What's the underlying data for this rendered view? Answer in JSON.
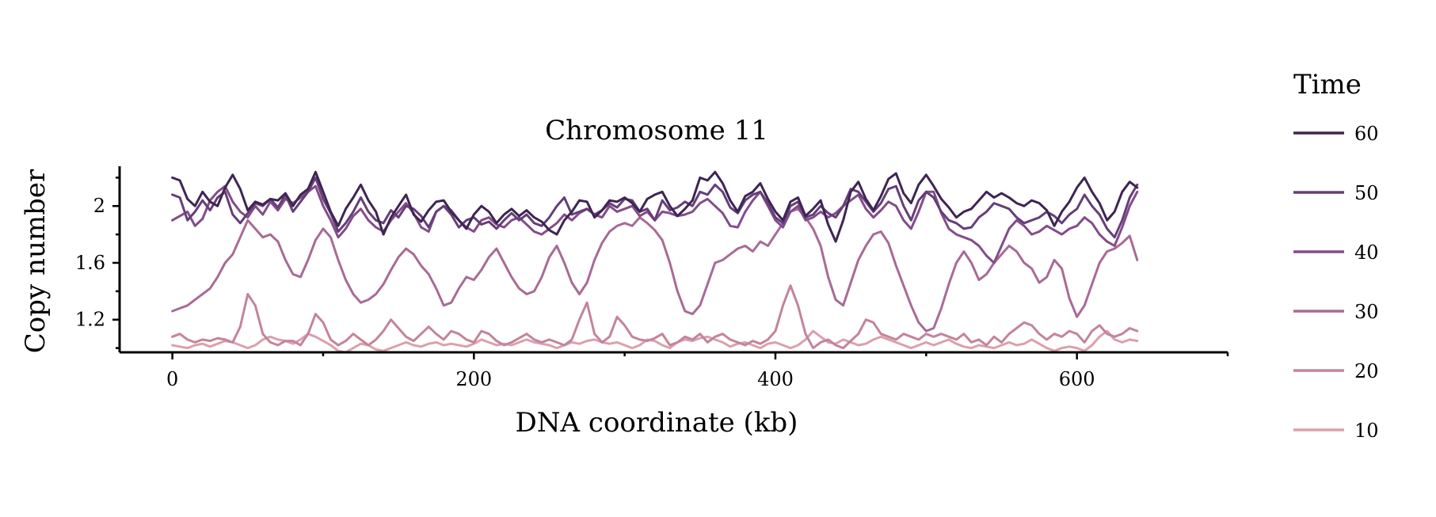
{
  "chart_data": {
    "type": "line",
    "title": "Chromosome 11",
    "xlabel": "DNA coordinate (kb)",
    "ylabel": "Copy number",
    "xlim": [
      -35,
      700
    ],
    "ylim": [
      0.97,
      2.28
    ],
    "xticks": [
      0,
      200,
      400,
      600
    ],
    "xtick_labels": [
      "0",
      "200",
      "400",
      "600"
    ],
    "xticks_minor": [
      100,
      300,
      500,
      700
    ],
    "yticks": [
      1.2,
      1.6,
      2.0
    ],
    "ytick_labels": [
      "1.2",
      "1.6",
      "2"
    ],
    "yticks_minor": [
      1.0,
      1.4,
      1.8,
      2.2
    ],
    "grid": false,
    "legend": {
      "title": "Time",
      "placement": "right-outside"
    },
    "x_step": 5,
    "series": [
      {
        "name": "60",
        "color": "#3e2553",
        "values": [
          2.2,
          2.18,
          2.05,
          2.0,
          2.1,
          2.03,
          2.0,
          2.13,
          2.22,
          2.12,
          1.97,
          2.03,
          2.01,
          2.05,
          2.04,
          2.09,
          2.0,
          2.08,
          2.12,
          2.24,
          2.1,
          1.96,
          1.86,
          1.98,
          2.06,
          2.15,
          2.04,
          1.96,
          1.8,
          1.92,
          2.0,
          2.08,
          1.94,
          1.89,
          1.97,
          2.03,
          2.04,
          1.96,
          1.9,
          1.84,
          1.94,
          2.0,
          1.96,
          1.88,
          1.94,
          1.98,
          1.93,
          1.97,
          1.92,
          1.89,
          1.83,
          1.8,
          1.9,
          1.96,
          2.04,
          2.03,
          1.92,
          1.97,
          2.04,
          2.03,
          2.06,
          2.02,
          1.96,
          2.05,
          2.08,
          2.1,
          2.0,
          1.93,
          1.98,
          2.04,
          2.2,
          2.18,
          2.24,
          2.16,
          2.04,
          1.96,
          2.07,
          2.1,
          2.16,
          2.05,
          1.96,
          1.9,
          2.03,
          2.06,
          1.93,
          1.98,
          2.04,
          1.87,
          1.75,
          1.9,
          2.1,
          2.17,
          2.05,
          1.97,
          2.07,
          2.19,
          2.23,
          2.09,
          2.02,
          2.15,
          2.22,
          2.14,
          2.05,
          1.99,
          1.92,
          1.96,
          1.98,
          2.04,
          2.1,
          2.06,
          2.09,
          2.06,
          2.02,
          2.0,
          2.04,
          2.02,
          1.97,
          1.86,
          1.96,
          2.03,
          2.13,
          2.2,
          2.1,
          2.02,
          1.9,
          1.96,
          2.1,
          2.17,
          2.13
        ]
      },
      {
        "name": "50",
        "color": "#653f78",
        "values": [
          2.08,
          2.06,
          1.9,
          1.96,
          2.04,
          1.97,
          2.06,
          2.1,
          1.94,
          1.88,
          1.95,
          2.02,
          2.0,
          2.05,
          1.99,
          2.08,
          1.96,
          2.03,
          2.1,
          2.2,
          2.05,
          1.95,
          1.82,
          1.88,
          1.96,
          2.06,
          1.96,
          1.9,
          1.88,
          1.97,
          1.92,
          2.0,
          1.98,
          1.93,
          1.85,
          1.96,
          2.0,
          1.94,
          1.85,
          1.9,
          1.92,
          1.87,
          1.89,
          1.84,
          1.9,
          1.95,
          1.9,
          1.94,
          1.88,
          1.86,
          1.92,
          2.0,
          2.06,
          1.94,
          1.96,
          1.98,
          1.94,
          1.97,
          2.02,
          1.99,
          2.05,
          2.04,
          1.96,
          1.98,
          1.9,
          2.04,
          1.97,
          1.99,
          2.03,
          2.0,
          2.1,
          2.08,
          2.15,
          2.1,
          1.99,
          1.95,
          2.04,
          2.08,
          2.1,
          2.02,
          1.92,
          1.88,
          2.0,
          2.03,
          1.92,
          1.94,
          2.0,
          1.95,
          1.92,
          2.0,
          2.12,
          2.1,
          2.03,
          1.96,
          2.02,
          2.12,
          2.14,
          2.0,
          1.9,
          2.04,
          2.1,
          2.06,
          1.96,
          1.9,
          1.88,
          1.84,
          1.85,
          1.92,
          1.96,
          2.02,
          2.0,
          1.98,
          1.92,
          1.88,
          1.9,
          1.92,
          1.96,
          1.93,
          1.88,
          1.94,
          1.98,
          2.08,
          2.0,
          1.94,
          1.84,
          1.78,
          1.9,
          2.06,
          2.15
        ]
      },
      {
        "name": "40",
        "color": "#834c8a",
        "values": [
          1.9,
          1.93,
          1.96,
          1.86,
          1.91,
          2.04,
          2.1,
          2.14,
          2.03,
          1.96,
          1.92,
          2.0,
          1.94,
          2.03,
          1.97,
          2.05,
          2.02,
          2.06,
          2.1,
          2.14,
          2.0,
          1.9,
          1.78,
          1.84,
          1.93,
          1.98,
          1.9,
          1.85,
          1.82,
          1.9,
          1.96,
          2.02,
          1.95,
          1.85,
          1.82,
          1.96,
          2.0,
          1.97,
          1.9,
          1.85,
          1.82,
          1.9,
          1.92,
          1.87,
          1.85,
          1.9,
          1.92,
          1.87,
          1.82,
          1.8,
          1.84,
          1.88,
          1.94,
          1.9,
          1.95,
          1.98,
          1.94,
          1.92,
          2.0,
          1.96,
          1.98,
          2.0,
          1.93,
          1.96,
          1.9,
          1.96,
          1.95,
          1.93,
          1.94,
          1.96,
          2.02,
          2.05,
          2.0,
          1.95,
          1.86,
          1.85,
          1.96,
          2.04,
          2.1,
          2.0,
          1.9,
          1.85,
          1.96,
          2.0,
          1.9,
          1.92,
          1.96,
          1.92,
          1.95,
          2.0,
          2.04,
          2.08,
          1.98,
          1.92,
          1.97,
          2.03,
          2.0,
          1.9,
          1.84,
          1.96,
          2.1,
          2.1,
          1.95,
          1.84,
          1.8,
          1.78,
          1.76,
          1.72,
          1.65,
          1.6,
          1.72,
          1.84,
          1.9,
          1.86,
          1.8,
          1.82,
          1.86,
          1.83,
          1.8,
          1.84,
          1.86,
          1.92,
          1.88,
          1.8,
          1.75,
          1.72,
          1.85,
          2.0,
          2.1
        ]
      },
      {
        "name": "30",
        "color": "#a86b96",
        "values": [
          1.26,
          1.28,
          1.3,
          1.34,
          1.38,
          1.42,
          1.5,
          1.6,
          1.66,
          1.78,
          1.9,
          1.84,
          1.78,
          1.8,
          1.75,
          1.62,
          1.52,
          1.5,
          1.62,
          1.76,
          1.84,
          1.78,
          1.62,
          1.48,
          1.38,
          1.32,
          1.34,
          1.38,
          1.45,
          1.55,
          1.64,
          1.7,
          1.66,
          1.58,
          1.52,
          1.42,
          1.3,
          1.32,
          1.42,
          1.5,
          1.48,
          1.55,
          1.64,
          1.7,
          1.6,
          1.5,
          1.42,
          1.38,
          1.4,
          1.5,
          1.64,
          1.72,
          1.6,
          1.46,
          1.38,
          1.46,
          1.62,
          1.74,
          1.82,
          1.86,
          1.88,
          1.86,
          1.92,
          1.88,
          1.83,
          1.76,
          1.6,
          1.4,
          1.26,
          1.24,
          1.3,
          1.45,
          1.6,
          1.62,
          1.66,
          1.7,
          1.72,
          1.68,
          1.75,
          1.72,
          1.8,
          1.88,
          1.96,
          1.98,
          1.92,
          1.84,
          1.72,
          1.5,
          1.34,
          1.3,
          1.46,
          1.62,
          1.72,
          1.8,
          1.82,
          1.74,
          1.58,
          1.44,
          1.3,
          1.18,
          1.12,
          1.14,
          1.28,
          1.45,
          1.6,
          1.68,
          1.6,
          1.48,
          1.52,
          1.6,
          1.66,
          1.72,
          1.68,
          1.6,
          1.56,
          1.46,
          1.5,
          1.62,
          1.56,
          1.35,
          1.22,
          1.3,
          1.45,
          1.6,
          1.68,
          1.7,
          1.74,
          1.79,
          1.62
        ]
      },
      {
        "name": "20",
        "color": "#c3849c",
        "values": [
          1.08,
          1.1,
          1.06,
          1.04,
          1.06,
          1.05,
          1.07,
          1.06,
          1.04,
          1.15,
          1.38,
          1.3,
          1.1,
          1.04,
          1.02,
          1.05,
          1.05,
          1.02,
          1.1,
          1.24,
          1.18,
          1.06,
          1.02,
          1.05,
          1.1,
          1.06,
          1.02,
          1.06,
          1.12,
          1.2,
          1.14,
          1.08,
          1.05,
          1.1,
          1.15,
          1.1,
          1.06,
          1.12,
          1.1,
          1.06,
          1.04,
          1.12,
          1.1,
          1.05,
          1.02,
          1.04,
          1.07,
          1.1,
          1.06,
          1.04,
          1.06,
          1.04,
          1.02,
          1.06,
          1.2,
          1.32,
          1.1,
          1.04,
          1.08,
          1.22,
          1.16,
          1.08,
          1.06,
          1.05,
          1.07,
          1.1,
          1.02,
          1.04,
          1.08,
          1.06,
          1.1,
          1.04,
          1.08,
          1.1,
          1.06,
          1.04,
          1.02,
          1.05,
          1.03,
          1.06,
          1.12,
          1.3,
          1.44,
          1.3,
          1.1,
          1.0,
          1.04,
          1.06,
          1.02,
          1.0,
          1.05,
          1.1,
          1.2,
          1.18,
          1.1,
          1.08,
          1.06,
          1.1,
          1.08,
          1.06,
          1.1,
          1.08,
          1.1,
          1.08,
          1.06,
          1.1,
          1.04,
          1.06,
          1.02,
          1.08,
          1.04,
          1.1,
          1.14,
          1.18,
          1.16,
          1.1,
          1.06,
          1.1,
          1.08,
          1.12,
          1.1,
          1.04,
          1.12,
          1.16,
          1.1,
          1.08,
          1.1,
          1.14,
          1.12
        ]
      },
      {
        "name": "10",
        "color": "#dba0ab",
        "values": [
          1.02,
          1.01,
          1.0,
          1.02,
          1.03,
          1.01,
          1.03,
          1.05,
          1.04,
          1.02,
          1.0,
          1.02,
          1.06,
          1.08,
          1.06,
          1.05,
          1.03,
          1.06,
          1.1,
          1.08,
          1.05,
          1.02,
          0.98,
          0.97,
          1.0,
          1.03,
          1.02,
          0.99,
          0.98,
          1.0,
          1.02,
          1.04,
          1.02,
          1.01,
          1.03,
          1.04,
          1.02,
          1.03,
          1.02,
          1.01,
          1.03,
          1.06,
          1.04,
          1.02,
          1.03,
          1.02,
          1.04,
          1.06,
          1.04,
          1.03,
          1.02,
          1.0,
          1.02,
          1.04,
          1.03,
          1.05,
          1.06,
          1.04,
          1.03,
          1.04,
          1.02,
          1.0,
          1.02,
          1.06,
          1.05,
          1.02,
          1.0,
          1.04,
          1.06,
          1.05,
          1.07,
          1.08,
          1.06,
          1.04,
          1.01,
          1.03,
          1.04,
          1.02,
          1.0,
          1.03,
          1.04,
          1.02,
          1.0,
          1.02,
          1.06,
          1.12,
          1.08,
          1.04,
          1.03,
          1.06,
          1.04,
          1.02,
          1.03,
          1.06,
          1.08,
          1.06,
          1.04,
          1.02,
          1.0,
          1.02,
          1.04,
          1.02,
          1.04,
          1.06,
          1.03,
          1.01,
          1.0,
          1.02,
          1.01,
          1.0,
          1.02,
          1.04,
          1.02,
          1.03,
          1.06,
          1.03,
          1.0,
          0.98,
          1.0,
          1.01,
          1.0,
          0.98,
          1.02,
          1.08,
          1.12,
          1.06,
          1.04,
          1.06,
          1.05
        ]
      }
    ]
  }
}
